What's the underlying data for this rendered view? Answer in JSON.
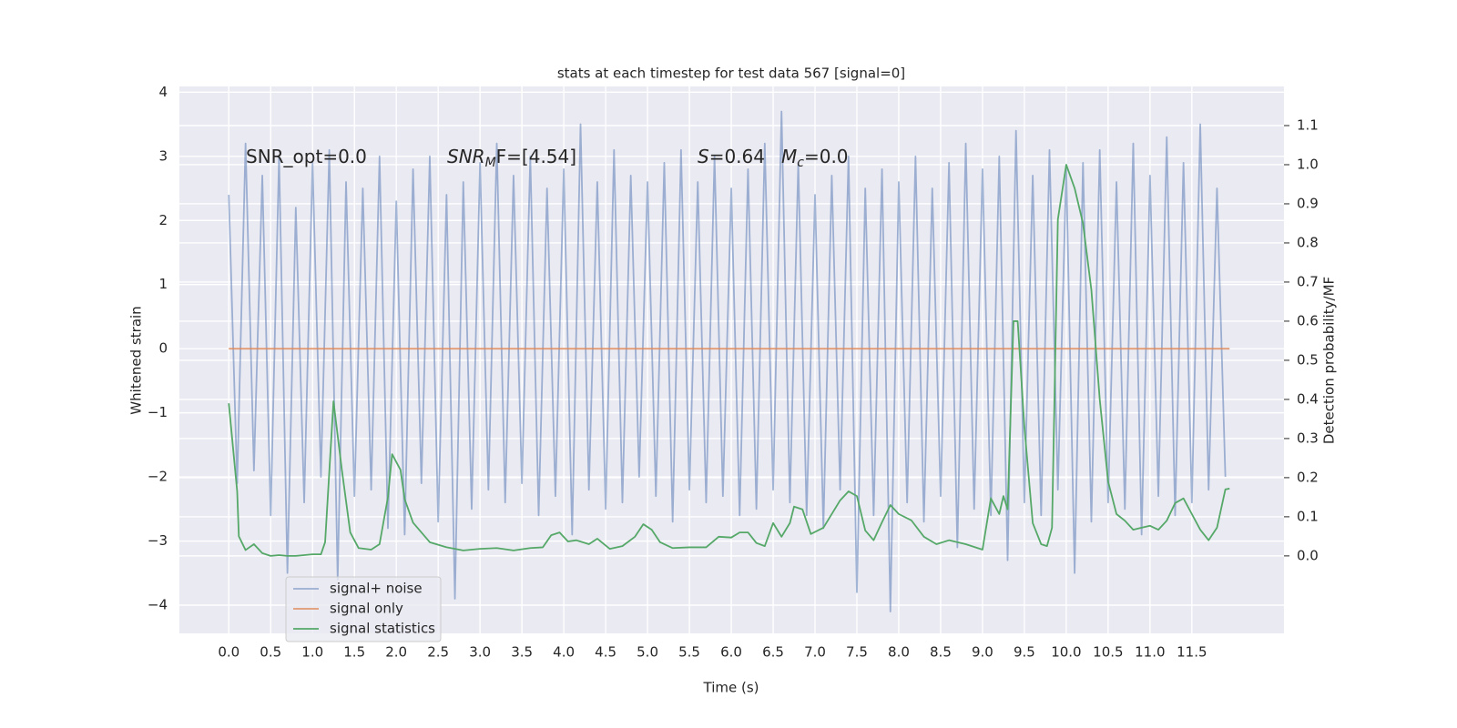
{
  "chart_data": {
    "type": "line",
    "title": "stats at each timestep for test data 567 [signal=0]",
    "xlabel": "Time (s)",
    "ylabel": "Whitened strain",
    "y2label": "Detection probability/MF",
    "xlim": [
      -0.59,
      12.6
    ],
    "ylim": [
      -4.44,
      4.09
    ],
    "y2lim": [
      -0.198,
      1.2
    ],
    "xticks": [
      {
        "value": 0,
        "label": "0.0"
      },
      0.5,
      {
        "value": 1,
        "label": "1.0"
      },
      1.5,
      {
        "value": 2,
        "label": "2.0"
      },
      2.5,
      {
        "value": 3,
        "label": "3.0"
      },
      3.5,
      {
        "value": 4,
        "label": "4.0"
      },
      4.5,
      {
        "value": 5,
        "label": "5.0"
      },
      5.5,
      {
        "value": 6,
        "label": "6.0"
      },
      6.5,
      {
        "value": 7,
        "label": "7.0"
      },
      7.5,
      {
        "value": 8,
        "label": "8.0"
      },
      8.5,
      {
        "value": 9,
        "label": "9.0"
      },
      9.5,
      {
        "value": 10,
        "label": "10.0"
      },
      10.5,
      {
        "value": 11,
        "label": "11.0"
      },
      11.5
    ],
    "yticks": [
      {
        "value": -4,
        "label": "−4"
      },
      {
        "value": -3,
        "label": "−3"
      },
      {
        "value": -2,
        "label": "−2"
      },
      {
        "value": -1,
        "label": "−1"
      },
      0,
      1,
      2,
      3,
      4
    ],
    "y2ticks": [
      {
        "value": 0,
        "label": "0.0"
      },
      0.1,
      0.2,
      0.3,
      0.4,
      0.5,
      0.6,
      0.7,
      0.8,
      0.9,
      {
        "value": 1,
        "label": "1.0"
      },
      1.1
    ],
    "grid": true,
    "legend": "lower left",
    "annotations": [
      {
        "parts": [
          {
            "text": "SNR_opt=0.0"
          }
        ]
      },
      {
        "parts": [
          {
            "text": "SNR",
            "style": "italic"
          },
          {
            "text": "M",
            "style": "italic-sub"
          },
          {
            "text": "F=[4.54]"
          }
        ]
      },
      {
        "parts": [
          {
            "text": "S",
            "style": "italic"
          },
          {
            "text": "=0.64"
          }
        ]
      },
      {
        "parts": [
          {
            "text": "M",
            "style": "italic"
          },
          {
            "text": "c",
            "style": "italic-sub"
          },
          {
            "text": "=0.0"
          }
        ]
      }
    ],
    "series": [
      {
        "name": "signal+ noise",
        "color": "#4c72b0",
        "alpha": 0.5,
        "x": [
          0.0,
          0.1,
          0.2,
          0.3,
          0.4,
          0.5,
          0.6,
          0.7,
          0.8,
          0.9,
          1.0,
          1.1,
          1.2,
          1.3,
          1.4,
          1.5,
          1.6,
          1.7,
          1.8,
          1.9,
          2.0,
          2.1,
          2.2,
          2.3,
          2.4,
          2.5,
          2.6,
          2.7,
          2.8,
          2.9,
          3.0,
          3.1,
          3.2,
          3.3,
          3.4,
          3.5,
          3.6,
          3.7,
          3.8,
          3.9,
          4.0,
          4.1,
          4.2,
          4.3,
          4.4,
          4.5,
          4.6,
          4.7,
          4.8,
          4.9,
          5.0,
          5.1,
          5.2,
          5.3,
          5.4,
          5.5,
          5.6,
          5.7,
          5.8,
          5.9,
          6.0,
          6.1,
          6.2,
          6.3,
          6.4,
          6.5,
          6.6,
          6.7,
          6.8,
          6.9,
          7.0,
          7.1,
          7.2,
          7.3,
          7.4,
          7.5,
          7.6,
          7.7,
          7.8,
          7.9,
          8.0,
          8.1,
          8.2,
          8.3,
          8.4,
          8.5,
          8.6,
          8.7,
          8.8,
          8.9,
          9.0,
          9.1,
          9.2,
          9.3,
          9.4,
          9.5,
          9.6,
          9.7,
          9.8,
          9.9,
          10.0,
          10.1,
          10.2,
          10.3,
          10.4,
          10.5,
          10.6,
          10.7,
          10.8,
          10.9,
          11.0,
          11.1,
          11.2,
          11.3,
          11.4,
          11.5,
          11.6,
          11.7,
          11.8,
          11.9
        ],
        "values": [
          2.4,
          -2.1,
          3.2,
          -1.9,
          2.7,
          -2.6,
          3.0,
          -3.5,
          2.2,
          -2.4,
          2.9,
          -2.0,
          3.1,
          -3.6,
          2.6,
          -2.3,
          2.5,
          -2.2,
          3.0,
          -2.8,
          2.3,
          -2.9,
          2.8,
          -2.1,
          3.0,
          -2.7,
          2.4,
          -3.9,
          2.6,
          -2.5,
          2.9,
          -2.2,
          3.2,
          -2.4,
          2.7,
          -2.1,
          3.0,
          -2.6,
          2.5,
          -2.3,
          2.8,
          -2.9,
          3.5,
          -2.2,
          2.6,
          -2.5,
          3.1,
          -2.4,
          2.7,
          -2.0,
          2.6,
          -2.3,
          2.9,
          -2.7,
          3.1,
          -2.2,
          2.6,
          -2.4,
          3.0,
          -2.3,
          2.5,
          -2.6,
          2.8,
          -2.5,
          3.2,
          -2.2,
          3.7,
          -2.4,
          2.9,
          -2.6,
          2.4,
          -2.8,
          2.7,
          -2.2,
          3.0,
          -3.8,
          2.5,
          -2.6,
          2.8,
          -4.1,
          2.6,
          -2.4,
          3.0,
          -2.7,
          2.5,
          -2.3,
          2.9,
          -3.1,
          3.2,
          -2.5,
          2.8,
          -2.6,
          3.0,
          -3.3,
          3.4,
          -2.4,
          2.7,
          -2.6,
          3.1,
          -2.2,
          2.8,
          -3.5,
          2.9,
          -2.7,
          3.1,
          -2.4,
          2.6,
          -2.5,
          3.2,
          -2.9,
          2.7,
          -2.3,
          3.3,
          -2.6,
          2.9,
          -2.4,
          3.5,
          -2.2,
          2.5,
          -2.0
        ]
      },
      {
        "name": "signal only",
        "color": "#dd8452",
        "alpha": 0.8,
        "x": [
          0.0,
          11.95
        ],
        "values": [
          0,
          0
        ]
      },
      {
        "name": "signal statistics",
        "color": "#55a868",
        "alpha": 1,
        "axis": "y2",
        "x": [
          0.0,
          0.1,
          0.12,
          0.2,
          0.3,
          0.4,
          0.5,
          0.6,
          0.7,
          0.8,
          0.9,
          1.0,
          1.1,
          1.15,
          1.25,
          1.35,
          1.45,
          1.55,
          1.7,
          1.8,
          1.9,
          1.95,
          2.05,
          2.1,
          2.2,
          2.4,
          2.6,
          2.8,
          3.0,
          3.2,
          3.4,
          3.6,
          3.75,
          3.85,
          3.95,
          4.05,
          4.15,
          4.3,
          4.4,
          4.55,
          4.7,
          4.85,
          4.95,
          5.05,
          5.15,
          5.3,
          5.5,
          5.7,
          5.85,
          6.0,
          6.1,
          6.2,
          6.3,
          6.4,
          6.5,
          6.6,
          6.7,
          6.75,
          6.85,
          6.95,
          7.1,
          7.3,
          7.4,
          7.5,
          7.6,
          7.7,
          7.8,
          7.9,
          8.0,
          8.15,
          8.3,
          8.45,
          8.6,
          8.8,
          9.0,
          9.1,
          9.2,
          9.25,
          9.3,
          9.37,
          9.42,
          9.5,
          9.6,
          9.7,
          9.77,
          9.83,
          9.9,
          10.0,
          10.1,
          10.2,
          10.3,
          10.4,
          10.5,
          10.6,
          10.7,
          10.8,
          10.9,
          11.0,
          11.1,
          11.2,
          11.3,
          11.4,
          11.5,
          11.6,
          11.7,
          11.8,
          11.9,
          11.95
        ],
        "values": [
          0.39,
          0.165,
          0.05,
          0.015,
          0.03,
          0.007,
          0.0,
          0.002,
          0.0,
          0.0,
          0.002,
          0.004,
          0.004,
          0.035,
          0.395,
          0.22,
          0.06,
          0.02,
          0.016,
          0.03,
          0.15,
          0.26,
          0.22,
          0.145,
          0.085,
          0.035,
          0.022,
          0.014,
          0.018,
          0.02,
          0.014,
          0.02,
          0.022,
          0.053,
          0.06,
          0.037,
          0.04,
          0.03,
          0.044,
          0.018,
          0.025,
          0.049,
          0.081,
          0.067,
          0.035,
          0.02,
          0.022,
          0.022,
          0.049,
          0.047,
          0.06,
          0.06,
          0.033,
          0.025,
          0.084,
          0.049,
          0.084,
          0.126,
          0.119,
          0.056,
          0.072,
          0.142,
          0.165,
          0.153,
          0.065,
          0.04,
          0.086,
          0.13,
          0.107,
          0.091,
          0.049,
          0.03,
          0.04,
          0.03,
          0.016,
          0.147,
          0.107,
          0.153,
          0.119,
          0.6,
          0.6,
          0.33,
          0.084,
          0.03,
          0.025,
          0.072,
          0.86,
          1.0,
          0.94,
          0.85,
          0.68,
          0.4,
          0.19,
          0.107,
          0.09,
          0.067,
          0.072,
          0.077,
          0.067,
          0.09,
          0.135,
          0.147,
          0.107,
          0.067,
          0.04,
          0.072,
          0.17,
          0.172
        ]
      }
    ]
  }
}
